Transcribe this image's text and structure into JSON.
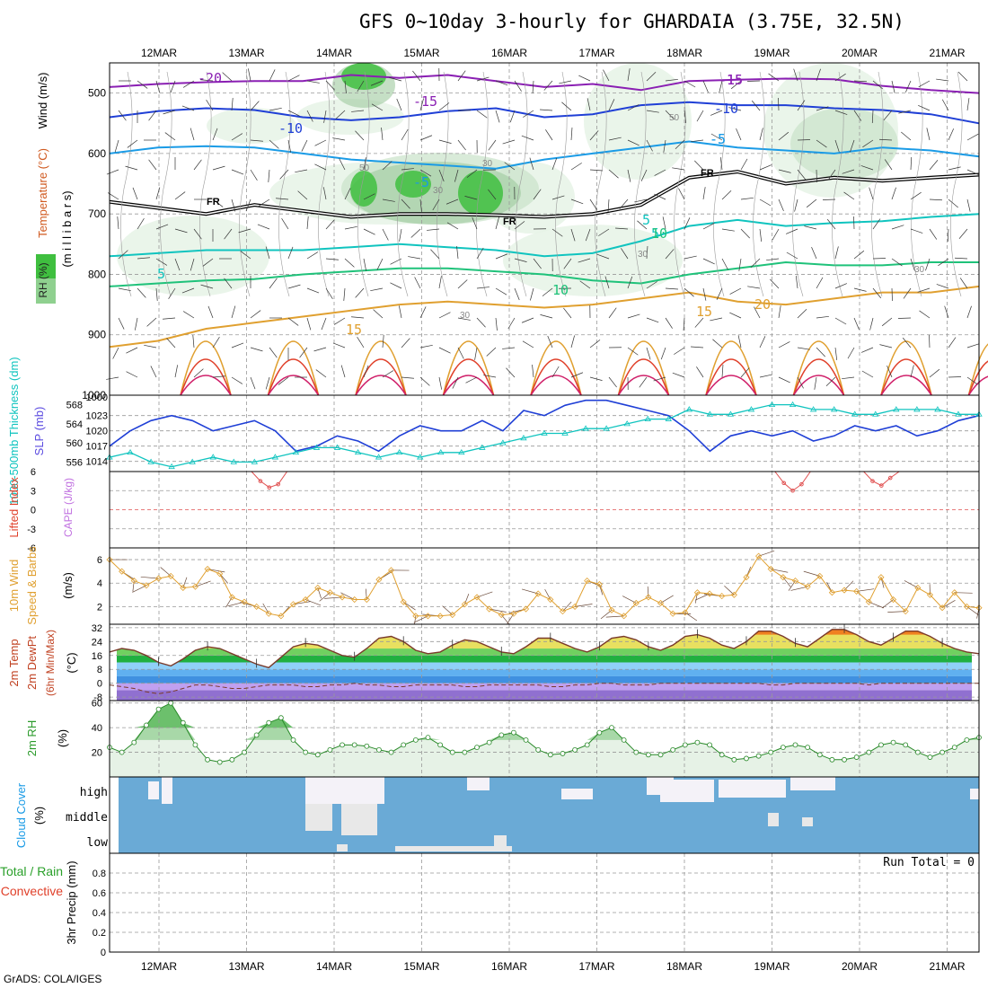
{
  "title": "GFS 0~10day 3-hourly for GHARDAIA (3.75E, 32.5N)",
  "credit": "GrADS: COLA/IGES",
  "dates": [
    "12MAR",
    "13MAR",
    "14MAR",
    "15MAR",
    "16MAR",
    "17MAR",
    "18MAR",
    "19MAR",
    "20MAR",
    "21MAR"
  ],
  "colors": {
    "purple": "#8a1fb3",
    "blue": "#1f3fd6",
    "sky": "#1a9be6",
    "teal": "#10c4bf",
    "green": "#1fc27a",
    "orange": "#e0a030",
    "red": "#e0402a",
    "magenta": "#d0206a",
    "cloud": "#6aaad6",
    "cloud_clear": "#e8e8e8",
    "cloud_white": "#f4f2f8",
    "dewpt": "#a070e0",
    "rh_fill": "#8ad08a"
  },
  "chart_data": [
    {
      "panel": "upper_air",
      "type": "contour",
      "ylabel_parts": [
        "RH (%)",
        "Temperature (°C)",
        "Wind (m/s)"
      ],
      "ylabel_units": "(m i l l i b a r s)",
      "yticks": [
        500,
        600,
        700,
        800,
        900,
        1000
      ],
      "ylim": [
        450,
        1000
      ],
      "temperature_labels": [
        "-20",
        "-15",
        "-15",
        "-15",
        "-10",
        "-10",
        "-5",
        "-5",
        "-5",
        "5",
        "5",
        "5",
        "10",
        "10",
        "15",
        "15",
        "20"
      ],
      "freezing_label": "FR",
      "rh_labels": [
        "50",
        "30",
        "30",
        "30",
        "30",
        "50",
        "30"
      ],
      "isotherms": [
        {
          "t": -20,
          "color": "purple",
          "p": [
            490,
            485,
            482,
            480,
            480,
            470,
            475,
            470,
            480,
            490,
            485,
            495,
            480,
            478,
            476,
            477,
            488,
            495,
            500
          ]
        },
        {
          "t": -10,
          "color": "blue",
          "p": [
            540,
            530,
            525,
            528,
            540,
            545,
            540,
            530,
            525,
            540,
            535,
            520,
            515,
            520,
            520,
            525,
            528,
            535,
            550
          ]
        },
        {
          "t": -5,
          "color": "sky",
          "p": [
            600,
            590,
            588,
            590,
            600,
            610,
            615,
            620,
            625,
            610,
            600,
            590,
            580,
            590,
            595,
            600,
            590,
            595,
            605
          ]
        },
        {
          "t": 0,
          "color": "black",
          "p": [
            680,
            690,
            700,
            685,
            695,
            705,
            700,
            700,
            702,
            705,
            700,
            685,
            640,
            630,
            650,
            640,
            645,
            640,
            635
          ]
        },
        {
          "t": 5,
          "color": "teal",
          "p": [
            770,
            765,
            760,
            760,
            760,
            755,
            750,
            755,
            760,
            770,
            765,
            745,
            720,
            710,
            720,
            715,
            712,
            705,
            700
          ]
        },
        {
          "t": 10,
          "color": "green",
          "p": [
            820,
            815,
            810,
            808,
            800,
            795,
            790,
            790,
            795,
            800,
            810,
            815,
            800,
            790,
            780,
            785,
            785,
            780,
            780
          ]
        },
        {
          "t": 15,
          "color": "orange",
          "p": [
            920,
            910,
            890,
            880,
            870,
            860,
            850,
            845,
            850,
            855,
            850,
            840,
            830,
            845,
            850,
            840,
            830,
            830,
            820
          ]
        }
      ],
      "rh_regions_pct": [
        {
          "day": 2.3,
          "p": 470,
          "rh": 90
        },
        {
          "day": 2.4,
          "p": 660,
          "rh": 80
        },
        {
          "day": 3.6,
          "p": 650,
          "rh": 75
        },
        {
          "day": 3.9,
          "p": 690,
          "rh": 85
        }
      ]
    },
    {
      "panel": "pressure_thickness",
      "type": "line",
      "ylabel": "1000-500mb Thickness (dm)",
      "ylabel2": "SLP (mb)",
      "thickness_ticks": [
        556,
        560,
        564,
        568
      ],
      "slp_ticks": [
        1014,
        1017,
        1020,
        1023
      ],
      "slp_top_label": "1000",
      "slp_mb": [
        1017,
        1020,
        1022,
        1023,
        1022,
        1020,
        1021,
        1022,
        1020,
        1016,
        1017,
        1019,
        1018,
        1016,
        1019,
        1021,
        1020,
        1020,
        1022,
        1020,
        1024,
        1023,
        1025,
        1026,
        1026,
        1025,
        1024,
        1023,
        1020,
        1016,
        1019,
        1020,
        1019,
        1020,
        1018,
        1019,
        1021,
        1020,
        1021,
        1019,
        1020,
        1022,
        1023
      ],
      "thickness_dm": [
        557,
        558,
        556,
        555,
        556,
        557,
        556,
        556,
        557,
        558,
        559,
        559,
        558,
        557,
        558,
        557,
        558,
        558,
        559,
        560,
        561,
        562,
        562,
        563,
        563,
        564,
        565,
        565,
        567,
        566,
        566,
        567,
        568,
        568,
        567,
        567,
        566,
        566,
        567,
        567,
        567,
        566,
        566
      ]
    },
    {
      "panel": "stability",
      "type": "line",
      "ylabel": "Lifted Index",
      "ylabel2": "CAPE (J/kg)",
      "yticks": [
        "-6",
        "-3",
        "0",
        "3",
        "6"
      ],
      "ylim": [
        -6,
        6
      ],
      "lifted_index": [
        6.5,
        6.5,
        6.5,
        6.5,
        6.5,
        6.5,
        6.5,
        6.5,
        6.5,
        6.5,
        6.5,
        6.5,
        6.5,
        6.5,
        6.5,
        6.5,
        6,
        4.5,
        3.5,
        4,
        6.5,
        6.5,
        6.5,
        6.5,
        6.5,
        6.5,
        6.5,
        6.5,
        6.5,
        6.5,
        6.5,
        6.5,
        6.5,
        6.5,
        6.5,
        6.5,
        6.5,
        6.5,
        6.5,
        6.5,
        6.5,
        6.5,
        6.5,
        6.5,
        6.5,
        6.5,
        6.5,
        6.5,
        6.5,
        6.5,
        6.5,
        6.5,
        6.5,
        6.5,
        6.5,
        6.5,
        6.5,
        6.5,
        6.5,
        6.5,
        6.5,
        6.5,
        6.5,
        6.5,
        6.5,
        6.5,
        6.5,
        6.5,
        6.5,
        6.5,
        6.5,
        6.5,
        6.5,
        6.5,
        6.5,
        6,
        4.2,
        3,
        4,
        6.5,
        6.5,
        6.5,
        6.5,
        6.5,
        6.5,
        6,
        4.5,
        3.8,
        5,
        6.5,
        6.5,
        6.5,
        6.5,
        6.5,
        6.5,
        6.5,
        6.5,
        6.5,
        6.5
      ]
    },
    {
      "panel": "wind10m",
      "type": "line",
      "ylabel": "10m Wind Speed & Barbs",
      "ylabel_units": "(m/s)",
      "yticks": [
        2,
        4,
        6
      ],
      "ylim": [
        0.5,
        7
      ],
      "speed_ms": [
        6.0,
        5.0,
        4.2,
        3.8,
        4.4,
        4.6,
        3.6,
        3.7,
        5.2,
        4.8,
        2.8,
        2.4,
        2.0,
        1.4,
        1.2,
        2.2,
        2.6,
        3.6,
        3.2,
        2.8,
        2.6,
        2.6,
        4.3,
        5.1,
        2.4,
        1.2,
        1.2,
        1.2,
        1.3,
        2.2,
        2.8,
        1.8,
        1.3,
        1.4,
        1.8,
        3.1,
        2.6,
        1.6,
        2.0,
        4.2,
        3.9,
        1.7,
        1.2,
        2.3,
        2.8,
        2.3,
        1.4,
        1.5,
        3.2,
        3.1,
        2.9,
        3.0,
        4.5,
        6.3,
        5.2,
        4.5,
        4.2,
        3.7,
        4.6,
        3.2,
        3.4,
        3.3,
        2.4,
        4.5,
        2.6,
        1.6,
        3.6,
        3.0,
        1.9,
        3.2,
        2.0,
        1.9
      ]
    },
    {
      "panel": "temp2m",
      "type": "area",
      "ylabel": "2m Temp",
      "ylabel2": "2m DewPt",
      "ylabel3": "(6hr Min/Max)",
      "ylabel_units": "(°C)",
      "yticks": [
        "-8",
        "0",
        "8",
        "16",
        "24",
        "32"
      ],
      "ylim": [
        -10,
        34
      ],
      "temp_c": [
        18,
        20,
        19,
        16,
        12,
        10,
        14,
        19,
        21,
        20,
        17,
        14,
        11,
        9,
        15,
        21,
        23,
        22,
        19,
        16,
        15,
        20,
        26,
        27,
        24,
        19,
        17,
        18,
        22,
        25,
        24,
        21,
        18,
        17,
        21,
        26,
        26,
        23,
        20,
        18,
        21,
        26,
        27,
        25,
        21,
        19,
        22,
        27,
        28,
        26,
        22,
        20,
        24,
        30,
        30,
        27,
        23,
        21,
        26,
        31,
        31,
        28,
        24,
        22,
        26,
        30,
        30,
        27,
        23,
        20,
        18,
        17
      ],
      "dewpoint_c": [
        -1,
        -2,
        -3,
        -5,
        -6,
        -5,
        -3,
        -1,
        -1,
        -2,
        -3,
        -3,
        -2,
        -1,
        -1,
        -1,
        -2,
        -2,
        -1,
        -1,
        0,
        -1,
        -1,
        -2,
        -2,
        -1,
        -1,
        -1,
        -1,
        -2,
        -2,
        -1,
        -1,
        -1,
        -1,
        -1,
        -2,
        -2,
        -1,
        -1,
        0,
        0,
        -1,
        -1,
        -1,
        0,
        0,
        0,
        0,
        0,
        0,
        0,
        0,
        0,
        -1,
        -1,
        0,
        0,
        0,
        0,
        0,
        0,
        -1,
        0,
        0,
        0,
        0,
        0,
        0,
        0,
        0,
        0
      ]
    },
    {
      "panel": "rh2m",
      "type": "area",
      "ylabel": "2m RH",
      "ylabel_units": "(%)",
      "yticks": [
        20,
        40,
        60
      ],
      "ylim": [
        0,
        62
      ],
      "rh_pct": [
        24,
        20,
        28,
        42,
        55,
        60,
        44,
        26,
        14,
        12,
        14,
        20,
        34,
        44,
        48,
        30,
        20,
        18,
        22,
        26,
        26,
        25,
        22,
        20,
        26,
        30,
        32,
        26,
        20,
        20,
        24,
        28,
        34,
        36,
        30,
        22,
        18,
        19,
        22,
        26,
        36,
        40,
        30,
        20,
        18,
        18,
        22,
        26,
        28,
        26,
        18,
        14,
        15,
        17,
        20,
        24,
        26,
        24,
        18,
        14,
        14,
        16,
        20,
        26,
        28,
        26,
        20,
        16,
        20,
        24,
        30,
        32
      ]
    },
    {
      "panel": "cloud",
      "type": "heatmap",
      "ylabel": "Cloud Cover",
      "ylabel_units": "(%)",
      "levels": [
        "high",
        "middle",
        "low"
      ]
    },
    {
      "panel": "precip",
      "type": "bar",
      "ylabel": "3hr Precip (mm)",
      "ylabel_left": "Total / Rain",
      "ylabel_left2": "Convective",
      "yticks": [
        "0",
        "0.2",
        "0.4",
        "0.6",
        "0.8"
      ],
      "ylim": [
        0,
        1
      ],
      "run_total_label": "Run Total = 0",
      "values": []
    }
  ]
}
